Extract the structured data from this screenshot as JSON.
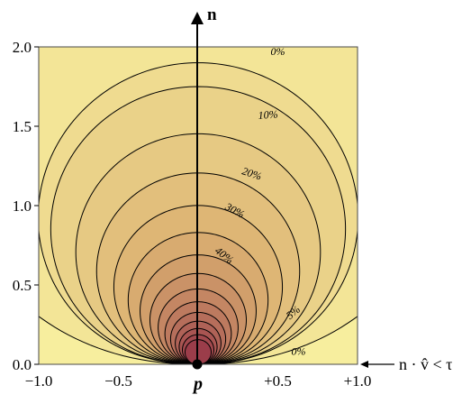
{
  "chart_data": {
    "type": "contour",
    "xlim": [
      -1.0,
      1.0
    ],
    "ylim": [
      0.0,
      2.0
    ],
    "xticks": [
      {
        "value": -1.0,
        "label": "−1.0"
      },
      {
        "value": -0.5,
        "label": "−0.5"
      },
      {
        "value": 0.0,
        "label": "p"
      },
      {
        "value": 0.5,
        "label": "+0.5"
      },
      {
        "value": 1.0,
        "label": "+1.0"
      }
    ],
    "yticks": [
      {
        "value": 0.0,
        "label": "0.0"
      },
      {
        "value": 0.5,
        "label": "0.5"
      },
      {
        "value": 1.0,
        "label": "1.0"
      },
      {
        "value": 1.5,
        "label": "1.5"
      },
      {
        "value": 2.0,
        "label": "2.0"
      }
    ],
    "levels_percent": [
      0,
      5,
      10,
      15,
      20,
      25,
      30,
      35,
      40,
      45,
      50,
      55,
      60,
      65,
      70,
      75
    ],
    "contour_labels": [
      {
        "text": "0%",
        "level": 0,
        "x": 0.5,
        "y": 1.95
      },
      {
        "text": "10%",
        "level": 10,
        "x": 0.44,
        "y": 1.55
      },
      {
        "text": "20%",
        "level": 20,
        "x": 0.33,
        "y": 1.18
      },
      {
        "text": "30%",
        "level": 30,
        "x": 0.22,
        "y": 0.95
      },
      {
        "text": "40%",
        "level": 40,
        "x": 0.15,
        "y": 0.67
      },
      {
        "text": "5%",
        "level": 5,
        "x": 0.61,
        "y": 0.31
      },
      {
        "text": "0%",
        "level": 0,
        "x": 0.63,
        "y": 0.06
      }
    ],
    "vertical_axis_label": "n",
    "origin_label": "p",
    "annotation": {
      "arrow_at_y": 0.0,
      "text": "n · v̂ < τ"
    },
    "colors": {
      "low": "#f7ee9e",
      "mid": "#dcb272",
      "high": "#9b3d4a",
      "line": "#000000",
      "border": "#4a4a4a"
    }
  }
}
